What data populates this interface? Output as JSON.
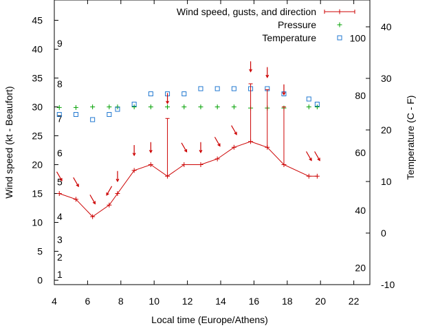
{
  "chart_data": {
    "type": "line",
    "xlabel": "Local time (Europe/Athens)",
    "ylabel_left": "Wind speed (kt - Beaufort)",
    "ylabel_right": "Temperature (C - F)",
    "xlim": [
      4,
      23
    ],
    "x_ticks": [
      "4",
      "6",
      "8",
      "10",
      "12",
      "14",
      "16",
      "18",
      "20",
      "22"
    ],
    "ylim_left": [
      -1,
      49
    ],
    "y_ticks_left": [
      "0",
      "5",
      "10",
      "15",
      "20",
      "25",
      "30",
      "35",
      "40",
      "45"
    ],
    "ylim_right_celsius": [
      -10,
      45
    ],
    "y_ticks_right_celsius": [
      "-10",
      "0",
      "10",
      "20",
      "30",
      "40"
    ],
    "beaufort_scale": [
      {
        "label": "1",
        "kt": 1
      },
      {
        "label": "2",
        "kt": 4
      },
      {
        "label": "3",
        "kt": 7
      },
      {
        "label": "4",
        "kt": 11
      },
      {
        "label": "5",
        "kt": 17
      },
      {
        "label": "6",
        "kt": 22
      },
      {
        "label": "7",
        "kt": 28
      },
      {
        "label": "8",
        "kt": 34
      },
      {
        "label": "9",
        "kt": 41
      }
    ],
    "fahrenheit_scale": [
      {
        "label": "20",
        "celsius": -6.7
      },
      {
        "label": "40",
        "celsius": 4.4
      },
      {
        "label": "60",
        "celsius": 15.6
      },
      {
        "label": "80",
        "celsius": 26.7
      },
      {
        "label": "100",
        "celsius": 37.8
      }
    ],
    "legend_position": "top-right",
    "series": [
      {
        "name": "Wind speed, gusts, and direction",
        "color": "#cc0000",
        "x": [
          4.3,
          5.3,
          6.3,
          7.3,
          7.8,
          8.8,
          9.8,
          10.8,
          11.8,
          12.8,
          13.8,
          14.8,
          15.8,
          16.8,
          17.8,
          19.3,
          19.8
        ],
        "speed": [
          15,
          14,
          11,
          13,
          15,
          19,
          20,
          18,
          20,
          20,
          21,
          23,
          24,
          23,
          20,
          18,
          18
        ],
        "gust": [
          null,
          null,
          null,
          null,
          null,
          null,
          null,
          28,
          null,
          null,
          null,
          null,
          34,
          33,
          30,
          null,
          null
        ],
        "arrow_y": [
          18,
          17,
          14,
          15.5,
          18,
          22.5,
          23,
          31.5,
          23,
          23,
          24,
          26,
          37,
          36,
          33,
          21.5,
          21.5
        ],
        "arrow_dir": [
          "down-right",
          "down-right",
          "down-right",
          "down-left",
          "down",
          "down",
          "down",
          "down",
          "down-right",
          "down",
          "down-right",
          "down-right",
          "down",
          "down",
          "down",
          "down-right",
          "down-right"
        ]
      },
      {
        "name": "Pressure",
        "color": "#00a000",
        "x": [
          4.3,
          5.3,
          6.3,
          7.3,
          7.8,
          8.8,
          9.8,
          10.8,
          11.8,
          12.8,
          13.8,
          14.8,
          15.8,
          16.8,
          17.8,
          19.3,
          19.8
        ],
        "values": [
          29.9,
          29.9,
          30,
          30,
          30,
          30,
          30,
          30,
          30,
          30,
          30,
          30,
          29.8,
          29.8,
          29.8,
          30,
          30
        ]
      },
      {
        "name": "Temperature",
        "color": "#1f77d0",
        "x": [
          4.3,
          5.3,
          6.3,
          7.3,
          7.8,
          8.8,
          9.8,
          10.8,
          11.8,
          12.8,
          13.8,
          14.8,
          15.8,
          16.8,
          17.8,
          19.3,
          19.8
        ],
        "celsius": [
          23.0,
          23.0,
          22.0,
          23.0,
          24.0,
          25.0,
          27.0,
          27.0,
          27.0,
          28.0,
          28.0,
          28.0,
          28.0,
          28.0,
          27.0,
          26.0,
          25.0
        ]
      }
    ]
  }
}
